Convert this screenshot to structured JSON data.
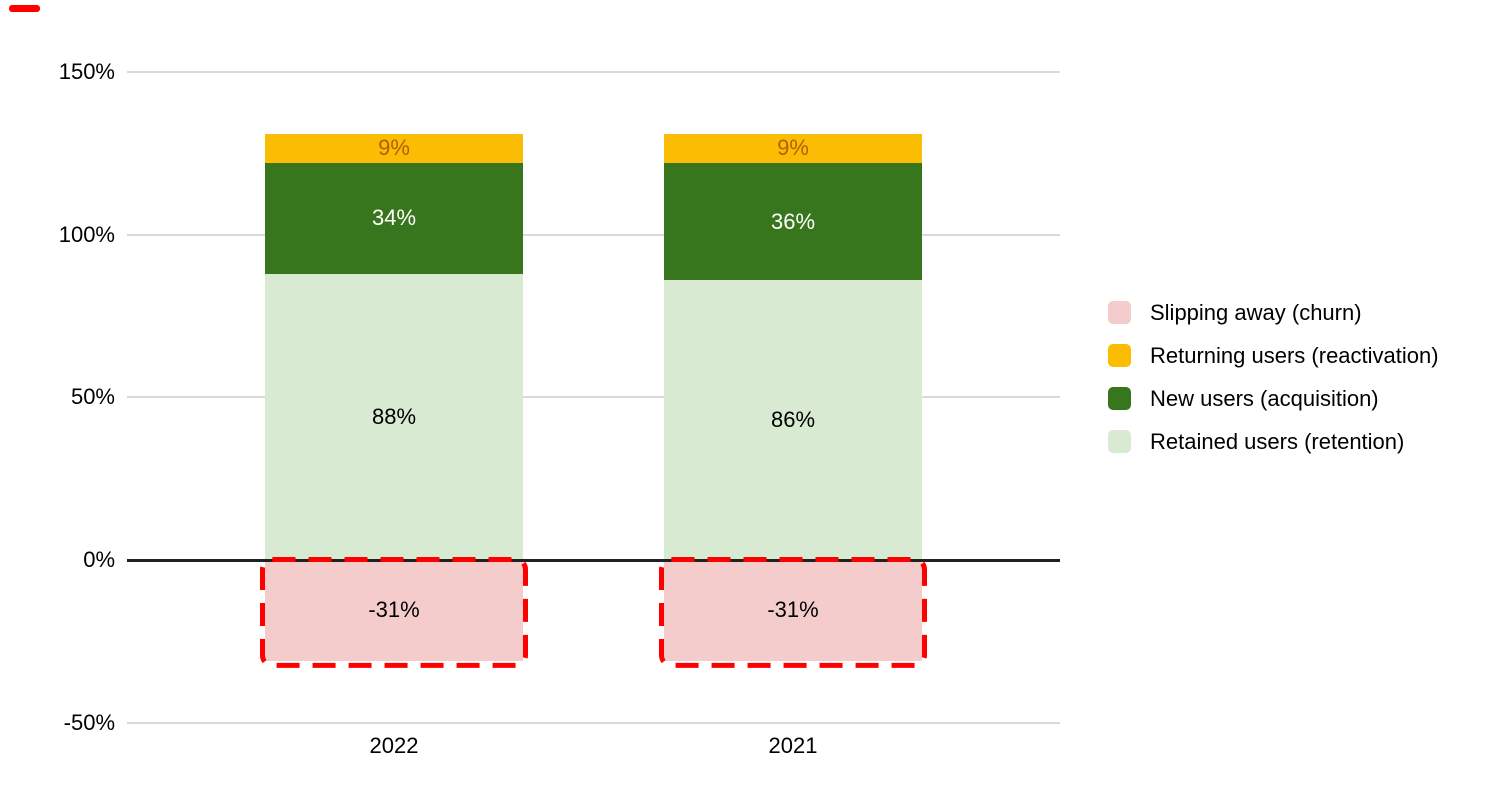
{
  "chart": {
    "background_color": "#FFFFFF",
    "stray_mark_color": "#FF0000"
  },
  "chart_data": {
    "type": "bar",
    "stacked": true,
    "orientation": "vertical",
    "categories": [
      "2022",
      "2021"
    ],
    "series": [
      {
        "key": "churn",
        "name": "Slipping away (churn)",
        "color": "#F4CCCC",
        "values": [
          -31,
          -31
        ],
        "data_labels": [
          "-31%",
          "-31%"
        ],
        "label_color": "#000000",
        "annotated": true
      },
      {
        "key": "reactivation",
        "name": "Returning users (reactivation)",
        "color": "#FBBC04",
        "values": [
          9,
          9
        ],
        "data_labels": [
          "9%",
          "9%"
        ],
        "label_color": "#B45F06",
        "annotated": false
      },
      {
        "key": "acquisition",
        "name": "New users (acquisition)",
        "color": "#38761D",
        "values": [
          34,
          36
        ],
        "data_labels": [
          "34%",
          "36%"
        ],
        "label_color": "#FFFFFF",
        "annotated": false
      },
      {
        "key": "retention",
        "name": "Retained users (retention)",
        "color": "#D9EAD3",
        "values": [
          88,
          86
        ],
        "data_labels": [
          "88%",
          "86%"
        ],
        "label_color": "#000000",
        "annotated": false
      }
    ],
    "stack_order_bottom_to_top": [
      "retention",
      "acquisition",
      "reactivation"
    ],
    "y_axis": {
      "range": [
        -50,
        150
      ],
      "ticks": [
        {
          "value": 150,
          "label": "150%"
        },
        {
          "value": 100,
          "label": "100%"
        },
        {
          "value": 50,
          "label": "50%"
        },
        {
          "value": 0,
          "label": "0%"
        },
        {
          "value": -50,
          "label": "-50%"
        }
      ]
    },
    "ylim": [
      -50,
      150
    ],
    "grid": true,
    "gridline_color": "#D9D9D9",
    "zero_line_color": "#212121",
    "legend_position": "right",
    "annotation": {
      "style": "dashed",
      "color": "#FF0000",
      "applies_to": "churn"
    }
  }
}
